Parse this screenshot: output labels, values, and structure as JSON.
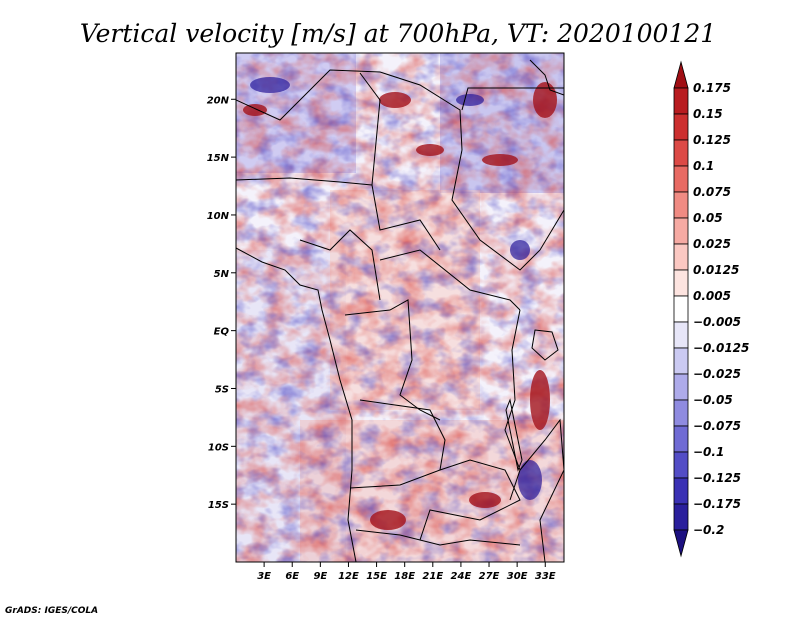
{
  "title": "Vertical velocity [m/s] at 700hPa, VT: 2020100121",
  "credit": "GrADS: IGES/COLA",
  "map": {
    "lon_range": [
      0,
      35
    ],
    "lat_range": [
      -20,
      24
    ],
    "lon_ticks": [
      {
        "value": 3,
        "label": "3E"
      },
      {
        "value": 6,
        "label": "6E"
      },
      {
        "value": 9,
        "label": "9E"
      },
      {
        "value": 12,
        "label": "12E"
      },
      {
        "value": 15,
        "label": "15E"
      },
      {
        "value": 18,
        "label": "18E"
      },
      {
        "value": 21,
        "label": "21E"
      },
      {
        "value": 24,
        "label": "24E"
      },
      {
        "value": 27,
        "label": "27E"
      },
      {
        "value": 30,
        "label": "30E"
      },
      {
        "value": 33,
        "label": "33E"
      }
    ],
    "lat_ticks": [
      {
        "value": 20,
        "label": "20N"
      },
      {
        "value": 15,
        "label": "15N"
      },
      {
        "value": 10,
        "label": "10N"
      },
      {
        "value": 5,
        "label": "5N"
      },
      {
        "value": 0,
        "label": "EQ"
      },
      {
        "value": -5,
        "label": "5S"
      },
      {
        "value": -10,
        "label": "10S"
      },
      {
        "value": -15,
        "label": "15S"
      }
    ]
  },
  "colorbar": {
    "levels": [
      "0.175",
      "0.15",
      "0.125",
      "0.1",
      "0.075",
      "0.05",
      "0.025",
      "0.0125",
      "0.005",
      "−0.005",
      "−0.0125",
      "−0.025",
      "−0.05",
      "−0.075",
      "−0.1",
      "−0.125",
      "−0.175",
      "−0.2"
    ],
    "colors": [
      "#a00e14",
      "#b81c20",
      "#cc2f2f",
      "#dc4a46",
      "#e86a63",
      "#f08b83",
      "#f6aaa3",
      "#fbc8c2",
      "#fde4e0",
      "#ffffff",
      "#e7e6f8",
      "#cbcaf2",
      "#aeabea",
      "#8f8be0",
      "#706bd4",
      "#534dc6",
      "#3a31b4",
      "#2a1f9c",
      "#1c1080"
    ]
  }
}
